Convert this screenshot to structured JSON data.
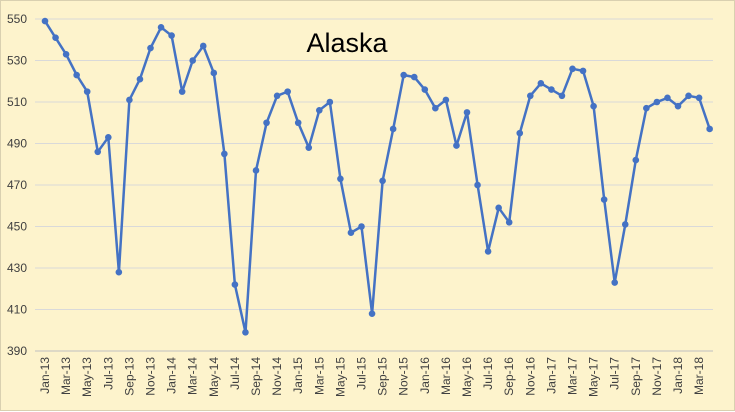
{
  "chart_data": {
    "type": "line",
    "title": "Alaska",
    "xlabel": "",
    "ylabel": "",
    "ylim": [
      390,
      550
    ],
    "y_ticks": [
      390,
      410,
      430,
      450,
      470,
      490,
      510,
      530,
      550
    ],
    "grid": "horizontal",
    "legend": "none",
    "colors": {
      "line": "#4472c4",
      "grid": "#d9d9d9",
      "background": "#fdf3cc"
    },
    "x": [
      "Jan-13",
      "Feb-13",
      "Mar-13",
      "Apr-13",
      "May-13",
      "Jun-13",
      "Jul-13",
      "Aug-13",
      "Sep-13",
      "Oct-13",
      "Nov-13",
      "Dec-13",
      "Jan-14",
      "Feb-14",
      "Mar-14",
      "Apr-14",
      "May-14",
      "Jun-14",
      "Jul-14",
      "Aug-14",
      "Sep-14",
      "Oct-14",
      "Nov-14",
      "Dec-14",
      "Jan-15",
      "Feb-15",
      "Mar-15",
      "Apr-15",
      "May-15",
      "Jun-15",
      "Jul-15",
      "Aug-15",
      "Sep-15",
      "Oct-15",
      "Nov-15",
      "Dec-15",
      "Jan-16",
      "Feb-16",
      "Mar-16",
      "Apr-16",
      "May-16",
      "Jun-16",
      "Jul-16",
      "Aug-16",
      "Sep-16",
      "Oct-16",
      "Nov-16",
      "Dec-16",
      "Jan-17",
      "Feb-17",
      "Mar-17",
      "Apr-17",
      "May-17",
      "Jun-17",
      "Jul-17",
      "Aug-17",
      "Sep-17",
      "Oct-17",
      "Nov-17",
      "Dec-17",
      "Jan-18",
      "Feb-18",
      "Mar-18",
      "Apr-18"
    ],
    "x_tick_labels": [
      "Jan-13",
      "Mar-13",
      "May-13",
      "Jul-13",
      "Sep-13",
      "Nov-13",
      "Jan-14",
      "Mar-14",
      "May-14",
      "Jul-14",
      "Sep-14",
      "Nov-14",
      "Jan-15",
      "Mar-15",
      "May-15",
      "Jul-15",
      "Sep-15",
      "Nov-15",
      "Jan-16",
      "Mar-16",
      "May-16",
      "Jul-16",
      "Sep-16",
      "Nov-16",
      "Jan-17",
      "Mar-17",
      "May-17",
      "Jul-17",
      "Sep-17",
      "Nov-17",
      "Jan-18",
      "Mar-18"
    ],
    "values": [
      549,
      541,
      533,
      523,
      515,
      486,
      493,
      428,
      511,
      521,
      536,
      546,
      542,
      515,
      530,
      537,
      524,
      485,
      422,
      399,
      477,
      500,
      513,
      515,
      500,
      488,
      506,
      510,
      473,
      447,
      450,
      408,
      472,
      497,
      523,
      522,
      516,
      507,
      511,
      489,
      505,
      470,
      438,
      459,
      452,
      495,
      513,
      519,
      516,
      513,
      526,
      525,
      508,
      463,
      423,
      451,
      482,
      507,
      510,
      512,
      508,
      513,
      512,
      497
    ]
  }
}
